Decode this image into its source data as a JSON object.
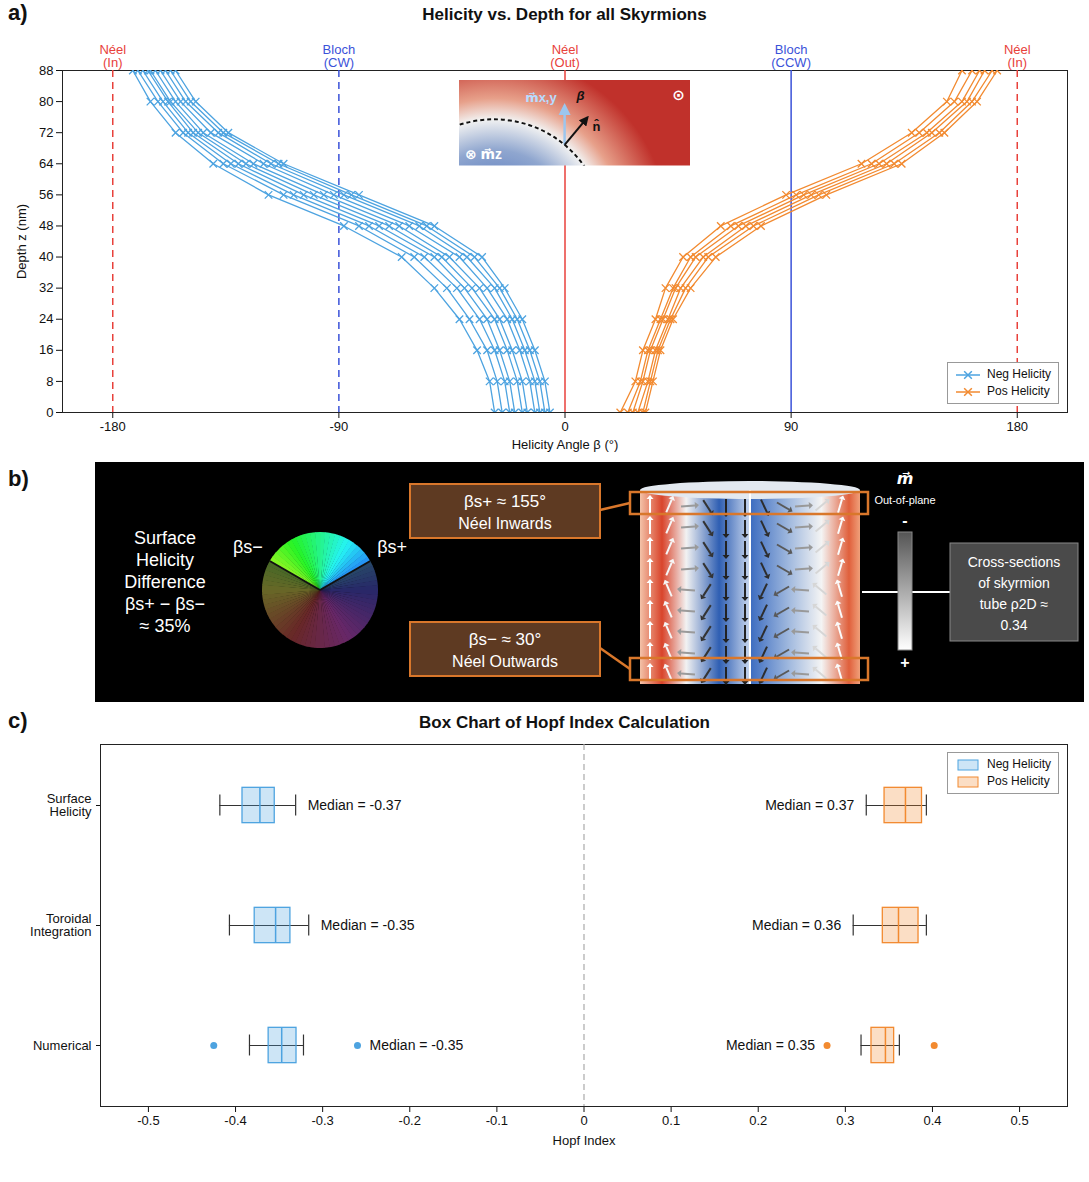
{
  "chart_data": [
    {
      "panel": "a)",
      "type": "line",
      "title": "Helicity vs. Depth for all Skyrmions",
      "x_label": "Helicity Angle β (°)",
      "y_label": "Depth z (nm)",
      "xlim": [
        -200,
        200
      ],
      "xticks": [
        -180,
        -90,
        0,
        90,
        180
      ],
      "ylim": [
        0,
        88
      ],
      "yticks": [
        0,
        8,
        16,
        24,
        32,
        40,
        48,
        56,
        64,
        72,
        80,
        88
      ],
      "y": [
        0,
        8,
        16,
        24,
        32,
        40,
        48,
        56,
        64,
        72,
        80,
        88
      ],
      "legend": "bottom-right",
      "reference_lines": [
        {
          "value": -180,
          "label": "Néel (In)",
          "color": "#e8413b",
          "line_style": "dashed"
        },
        {
          "value": -90,
          "label": "Bloch (CW)",
          "color": "#3b52d9",
          "line_style": "dashed"
        },
        {
          "value": 0,
          "label": "Néel (Out)",
          "color": "#e8413b",
          "line_style": "solid"
        },
        {
          "value": 90,
          "label": "Bloch (CCW)",
          "color": "#3b52d9",
          "line_style": "solid"
        },
        {
          "value": 180,
          "label": "Néel (In)",
          "color": "#e8413b",
          "line_style": "dashed"
        }
      ],
      "inset_labels": {
        "in_plane": "m⃗x,y",
        "angle": "β",
        "normal": "n̂",
        "out_of_plane": "⊗ m⃗z",
        "up": "⊙"
      },
      "series": [
        {
          "name": "Neg Helicity",
          "color": "#4da3e0",
          "marker": "x",
          "values": [
            [
              -28,
              -30,
              -35,
              -42,
              -52,
              -65,
              -88,
              -118,
              -140,
              -155,
              -165,
              -172
            ],
            [
              -25,
              -27,
              -31,
              -38,
              -47,
              -60,
              -82,
              -112,
              -136,
              -152,
              -162,
              -170
            ],
            [
              -22,
              -24,
              -28,
              -34,
              -43,
              -56,
              -78,
              -108,
              -133,
              -150,
              -160,
              -168
            ],
            [
              -20,
              -22,
              -26,
              -31,
              -40,
              -52,
              -74,
              -104,
              -130,
              -148,
              -158,
              -166
            ],
            [
              -17,
              -19,
              -23,
              -28,
              -37,
              -49,
              -70,
              -100,
              -127,
              -146,
              -157,
              -165
            ],
            [
              -15,
              -17,
              -21,
              -26,
              -34,
              -46,
              -66,
              -96,
              -124,
              -144,
              -155,
              -163
            ],
            [
              -12,
              -14,
              -18,
              -23,
              -31,
              -42,
              -62,
              -92,
              -120,
              -141,
              -153,
              -161
            ],
            [
              -10,
              -12,
              -16,
              -21,
              -28,
              -39,
              -58,
              -88,
              -117,
              -138,
              -151,
              -159
            ],
            [
              -8,
              -10,
              -14,
              -19,
              -26,
              -36,
              -55,
              -85,
              -114,
              -136,
              -149,
              -157
            ],
            [
              -6,
              -8,
              -12,
              -17,
              -24,
              -33,
              -52,
              -82,
              -112,
              -134,
              -147,
              -155
            ]
          ]
        },
        {
          "name": "Pos Helicity",
          "color": "#f28a30",
          "marker": "x",
          "values": [
            [
              22,
              28,
              31,
              36,
              40,
              47,
              62,
              88,
              118,
              138,
              152,
              158
            ],
            [
              25,
              30,
              33,
              38,
              43,
              50,
              66,
              92,
              122,
              141,
              155,
              162
            ],
            [
              27,
              31,
              34,
              39,
              44,
              52,
              69,
              95,
              125,
              144,
              158,
              165
            ],
            [
              29,
              33,
              36,
              41,
              46,
              55,
              72,
              98,
              128,
              146,
              160,
              167
            ],
            [
              31,
              34,
              37,
              42,
              48,
              57,
              75,
              101,
              131,
              149,
              162,
              170
            ],
            [
              32,
              35,
              38,
              43,
              50,
              60,
              78,
              104,
              134,
              151,
              164,
              172
            ]
          ]
        }
      ]
    },
    {
      "panel": "b)",
      "type": "diagram",
      "surface_difference": "Surface Helicity Difference βs+ − βs− ≈ 35%",
      "wheel_labels": [
        "βs−",
        "βs+"
      ],
      "top_box": {
        "title": "βs+ ≈ 155°",
        "subtitle": "Néel Inwards"
      },
      "bottom_box": {
        "title": "βs− ≈ 30°",
        "subtitle": "Néel Outwards"
      },
      "cross_section_label": "Cross-sections of skyrmion tube ρ2D ≈ 0.34",
      "colorbar": {
        "title": "m⃗",
        "subtitle": "Out-of-plane",
        "labels": [
          "-",
          "+"
        ]
      }
    },
    {
      "panel": "c)",
      "type": "box",
      "title": "Box Chart of Hopf Index Calculation",
      "categories": [
        "Surface Helicity",
        "Toroidal Integration",
        "Numerical"
      ],
      "x_label": "Hopf Index",
      "xlim": [
        -0.555,
        0.555
      ],
      "xticks": [
        -0.5,
        -0.4,
        -0.3,
        -0.2,
        -0.1,
        0,
        0.1,
        0.2,
        0.3,
        0.4,
        0.5
      ],
      "legend": "top-right",
      "reference_lines": [
        {
          "value": 0,
          "color": "#aaaaaa",
          "line_style": "dashed"
        }
      ],
      "series": [
        {
          "name": "Neg Helicity",
          "color": "#4da3e0",
          "boxes": [
            {
              "min": -0.418,
              "q1": -0.392,
              "median": -0.372,
              "q3": -0.355,
              "max": -0.331,
              "outliers": [],
              "median_label": "Median = -0.37"
            },
            {
              "min": -0.407,
              "q1": -0.378,
              "median": -0.354,
              "q3": -0.337,
              "max": -0.316,
              "outliers": [],
              "median_label": "Median = -0.35"
            },
            {
              "min": -0.384,
              "q1": -0.362,
              "median": -0.347,
              "q3": -0.33,
              "max": -0.322,
              "outliers": [
                -0.425,
                -0.26
              ],
              "median_label": "Median = -0.35"
            }
          ]
        },
        {
          "name": "Pos Helicity",
          "color": "#f28a30",
          "boxes": [
            {
              "min": 0.324,
              "q1": 0.345,
              "median": 0.369,
              "q3": 0.388,
              "max": 0.393,
              "outliers": [],
              "median_label": "Median = 0.37"
            },
            {
              "min": 0.309,
              "q1": 0.343,
              "median": 0.361,
              "q3": 0.384,
              "max": 0.393,
              "outliers": [],
              "median_label": "Median = 0.36"
            },
            {
              "min": 0.318,
              "q1": 0.33,
              "median": 0.346,
              "q3": 0.356,
              "max": 0.362,
              "outliers": [
                0.279,
                0.402
              ],
              "median_label": "Median = 0.35"
            }
          ]
        }
      ]
    }
  ]
}
